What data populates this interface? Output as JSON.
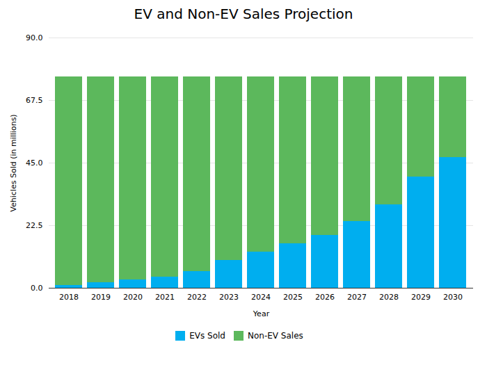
{
  "chart_data": {
    "type": "bar",
    "title": "EV and Non-EV Sales Projection",
    "xlabel": "Year",
    "ylabel": "Vehicles Sold (in millions)",
    "categories": [
      "2018",
      "2019",
      "2020",
      "2021",
      "2022",
      "2023",
      "2024",
      "2025",
      "2026",
      "2027",
      "2028",
      "2029",
      "2030"
    ],
    "series": [
      {
        "name": "EVs Sold",
        "color": "#00AEEF",
        "values": [
          1.0,
          2.0,
          3.0,
          4.0,
          6.0,
          10.0,
          13.0,
          16.0,
          19.0,
          24.0,
          30.0,
          40.0,
          47.0
        ]
      },
      {
        "name": "Non-EV Sales",
        "color": "#5CB85C",
        "values": [
          75.0,
          74.0,
          73.0,
          72.0,
          70.0,
          66.0,
          63.0,
          60.0,
          57.0,
          52.0,
          46.0,
          36.0,
          29.0
        ]
      }
    ],
    "stacked": true,
    "ylim": [
      0,
      90
    ],
    "yticks": [
      {
        "value": 0,
        "label": "0.0"
      },
      22.5,
      {
        "value": 45,
        "label": "45.0"
      },
      67.5,
      {
        "value": 90,
        "label": "90.0"
      }
    ],
    "grid": true,
    "legend": "bottom"
  }
}
